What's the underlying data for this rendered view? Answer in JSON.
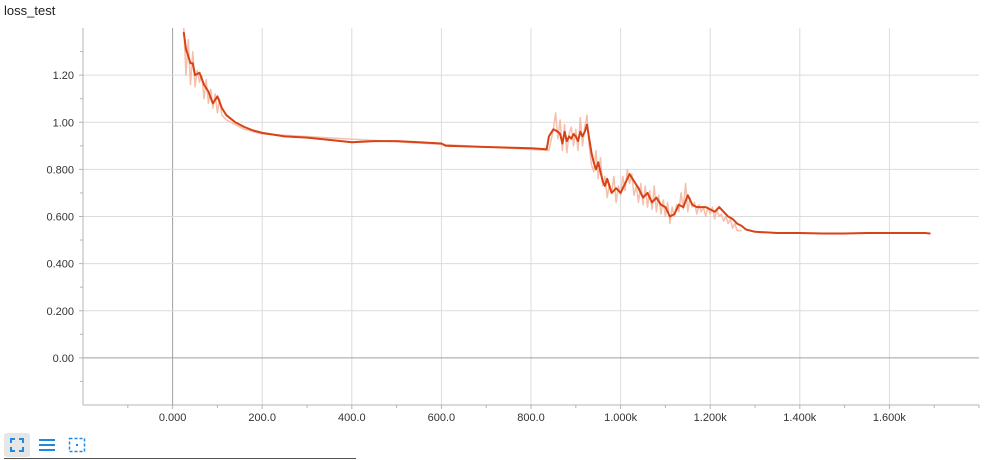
{
  "title": "loss_test",
  "colors": {
    "line": "#d84315",
    "raw_line": "#f4b8a4",
    "grid": "#dcdcdc",
    "axis": "#b5b5b5",
    "zero_line": "#a0a0a0",
    "icon": "#1e88e5"
  },
  "toolbar": {
    "expand_icon": "expand-icon",
    "list_icon": "list-icon",
    "fit_icon": "fit-domain-icon"
  },
  "chart_data": {
    "type": "line",
    "title": "loss_test",
    "xlabel": "",
    "ylabel": "",
    "xlim": [
      -200,
      1800
    ],
    "ylim": [
      -0.2,
      1.4
    ],
    "grid": true,
    "xticks": [
      0,
      200,
      400,
      600,
      800,
      1000,
      1200,
      1400,
      1600
    ],
    "xtick_labels": [
      "0.000",
      "200.0",
      "400.0",
      "600.0",
      "800.0",
      "1.000k",
      "1.200k",
      "1.400k",
      "1.600k"
    ],
    "yticks": [
      0,
      0.2,
      0.4,
      0.6,
      0.8,
      1.0,
      1.2
    ],
    "ytick_labels": [
      "0.00",
      "0.200",
      "0.400",
      "0.600",
      "0.800",
      "1.00",
      "1.20"
    ],
    "series": [
      {
        "x": [
          25,
          30,
          40,
          45,
          50,
          60,
          70,
          80,
          90,
          100,
          110,
          120,
          140,
          160,
          180,
          200,
          250,
          300,
          350,
          400,
          450,
          500,
          550,
          600,
          610,
          700,
          800,
          835,
          840,
          850,
          860,
          865,
          870,
          875,
          880,
          885,
          890,
          895,
          900,
          905,
          910,
          915,
          920,
          925,
          930,
          935,
          940,
          945,
          950,
          960,
          965,
          970,
          980,
          990,
          995,
          1000,
          1010,
          1020,
          1030,
          1040,
          1050,
          1060,
          1070,
          1080,
          1090,
          1100,
          1110,
          1120,
          1130,
          1140,
          1150,
          1160,
          1170,
          1180,
          1190,
          1200,
          1210,
          1220,
          1230,
          1240,
          1250,
          1260,
          1270,
          1280,
          1300,
          1350,
          1400,
          1450,
          1500,
          1550,
          1600,
          1650,
          1680,
          1690
        ],
        "values": [
          1.38,
          1.31,
          1.25,
          1.25,
          1.2,
          1.21,
          1.16,
          1.13,
          1.08,
          1.11,
          1.06,
          1.03,
          1.0,
          0.98,
          0.965,
          0.955,
          0.94,
          0.935,
          0.925,
          0.915,
          0.92,
          0.92,
          0.915,
          0.91,
          0.9,
          0.895,
          0.89,
          0.885,
          0.94,
          0.97,
          0.96,
          0.95,
          0.91,
          0.96,
          0.92,
          0.94,
          0.93,
          0.95,
          0.94,
          0.92,
          0.96,
          0.94,
          0.96,
          0.99,
          0.93,
          0.87,
          0.83,
          0.8,
          0.83,
          0.75,
          0.73,
          0.76,
          0.7,
          0.72,
          0.71,
          0.7,
          0.74,
          0.78,
          0.75,
          0.72,
          0.68,
          0.7,
          0.66,
          0.68,
          0.65,
          0.64,
          0.6,
          0.61,
          0.65,
          0.64,
          0.69,
          0.65,
          0.64,
          0.64,
          0.64,
          0.63,
          0.62,
          0.64,
          0.62,
          0.6,
          0.59,
          0.57,
          0.56,
          0.545,
          0.535,
          0.53,
          0.53,
          0.528,
          0.528,
          0.53,
          0.53,
          0.53,
          0.53,
          0.528
        ]
      },
      {
        "x": [
          25,
          30,
          35,
          40,
          45,
          50,
          55,
          60,
          65,
          70,
          75,
          80,
          85,
          90,
          95,
          100,
          105,
          110,
          120,
          140,
          160,
          180,
          200,
          840,
          850,
          855,
          860,
          865,
          870,
          875,
          880,
          885,
          890,
          895,
          900,
          905,
          910,
          915,
          920,
          925,
          930,
          935,
          940,
          945,
          950,
          955,
          960,
          965,
          970,
          975,
          980,
          985,
          990,
          995,
          1000,
          1005,
          1010,
          1015,
          1020,
          1025,
          1030,
          1035,
          1040,
          1045,
          1050,
          1055,
          1060,
          1065,
          1070,
          1075,
          1080,
          1085,
          1090,
          1095,
          1100,
          1105,
          1110,
          1115,
          1120,
          1125,
          1130,
          1135,
          1140,
          1145,
          1150,
          1155,
          1160,
          1165,
          1170,
          1175,
          1180,
          1185,
          1190,
          1195,
          1200,
          1205,
          1210,
          1215,
          1220,
          1225,
          1230,
          1235,
          1240,
          1245,
          1250,
          1255,
          1260,
          1270
        ],
        "values": [
          1.4,
          1.2,
          1.35,
          1.16,
          1.3,
          1.15,
          1.22,
          1.17,
          1.2,
          1.1,
          1.18,
          1.08,
          1.14,
          1.06,
          1.12,
          1.04,
          1.1,
          1.03,
          1.01,
          0.99,
          0.97,
          0.96,
          0.95,
          0.88,
          0.97,
          1.04,
          0.93,
          1.01,
          0.88,
          0.99,
          0.87,
          0.95,
          0.98,
          0.9,
          0.97,
          0.88,
          1.02,
          0.9,
          0.98,
          1.03,
          0.9,
          0.82,
          0.79,
          0.88,
          0.76,
          0.85,
          0.73,
          0.77,
          0.68,
          0.74,
          0.7,
          0.77,
          0.66,
          0.73,
          0.69,
          0.77,
          0.71,
          0.8,
          0.74,
          0.78,
          0.69,
          0.73,
          0.66,
          0.74,
          0.65,
          0.73,
          0.64,
          0.71,
          0.63,
          0.73,
          0.62,
          0.69,
          0.61,
          0.67,
          0.6,
          0.66,
          0.57,
          0.64,
          0.6,
          0.65,
          0.62,
          0.7,
          0.63,
          0.74,
          0.62,
          0.68,
          0.64,
          0.66,
          0.61,
          0.65,
          0.62,
          0.64,
          0.6,
          0.64,
          0.61,
          0.64,
          0.59,
          0.63,
          0.6,
          0.61,
          0.58,
          0.6,
          0.57,
          0.59,
          0.55,
          0.57,
          0.54,
          0.54
        ]
      }
    ]
  }
}
